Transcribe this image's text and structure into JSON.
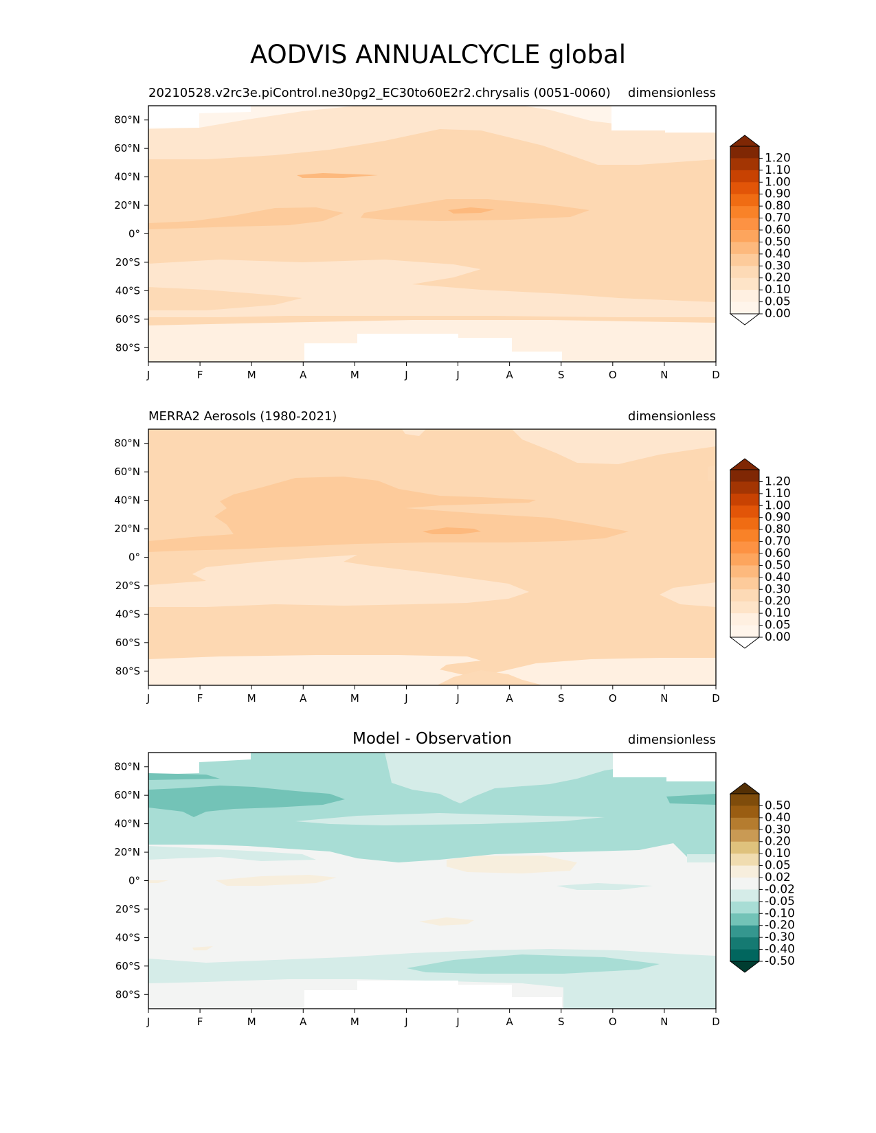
{
  "title": "AODVIS ANNUALCYCLE global",
  "chart_data": [
    {
      "type": "heatmap",
      "title": "",
      "left_title": "20210528.v2rc3e.piControl.ne30pg2_EC30to60E2r2.chrysalis (0051-0060)",
      "right_title": "dimensionless",
      "x_ticks": [
        "J",
        "F",
        "M",
        "A",
        "M",
        "J",
        "J",
        "A",
        "S",
        "O",
        "N",
        "D"
      ],
      "y_ticks": [
        "80°N",
        "60°N",
        "40°N",
        "20°N",
        "0°",
        "20°S",
        "40°S",
        "60°S",
        "80°S"
      ],
      "y_values": [
        80,
        60,
        40,
        20,
        0,
        -20,
        -40,
        -60,
        -80
      ],
      "ylim": [
        -90,
        90
      ],
      "colorbar": {
        "levels": [
          "1.20",
          "1.10",
          "1.00",
          "0.90",
          "0.80",
          "0.70",
          "0.60",
          "0.50",
          "0.40",
          "0.30",
          "0.20",
          "0.10",
          "0.05",
          "0.00"
        ],
        "colors": [
          "#7f2704",
          "#a33503",
          "#c84202",
          "#e25508",
          "#f06c13",
          "#f98228",
          "#fd9243",
          "#fda55d",
          "#fdb97d",
          "#fdcb9b",
          "#fddab6",
          "#fee4c8",
          "#fff0e1",
          "#fff5eb"
        ],
        "extend": "both",
        "top_color": "#7f2704",
        "bottom_color": "#ffffff"
      },
      "background_color": "#fdd8b2",
      "regions": [
        {
          "lat_range": [
            70,
            90
          ],
          "level": "0.05",
          "months": "J-A"
        },
        {
          "lat_range": [
            40,
            70
          ],
          "level": "0.10",
          "months": "J-A"
        },
        {
          "lat_range": [
            30,
            70
          ],
          "level": "0.20",
          "months": "M-A"
        },
        {
          "lat_range": [
            5,
            15
          ],
          "level": "0.30",
          "months": "J-A"
        },
        {
          "lat_range": [
            -15,
            -35
          ],
          "level": "0.10",
          "months": "J-D"
        },
        {
          "lat_range": [
            -60,
            -90
          ],
          "level": "0.05",
          "months": "J-D"
        },
        {
          "lat_range": [
            -75,
            -90
          ],
          "level": "0.00",
          "months": "A-S"
        }
      ]
    },
    {
      "type": "heatmap",
      "title": "",
      "left_title": "MERRA2 Aerosols (1980-2021)",
      "right_title": "dimensionless",
      "x_ticks": [
        "J",
        "F",
        "M",
        "A",
        "M",
        "J",
        "J",
        "A",
        "S",
        "O",
        "N",
        "D"
      ],
      "y_ticks": [
        "80°N",
        "60°N",
        "40°N",
        "20°N",
        "0°",
        "20°S",
        "40°S",
        "60°S",
        "80°S"
      ],
      "y_values": [
        80,
        60,
        40,
        20,
        0,
        -20,
        -40,
        -60,
        -80
      ],
      "ylim": [
        -90,
        90
      ],
      "colorbar": {
        "levels": [
          "1.20",
          "1.10",
          "1.00",
          "0.90",
          "0.80",
          "0.70",
          "0.60",
          "0.50",
          "0.40",
          "0.30",
          "0.20",
          "0.10",
          "0.05",
          "0.00"
        ],
        "colors": [
          "#7f2704",
          "#a33503",
          "#c84202",
          "#e25508",
          "#f06c13",
          "#f98228",
          "#fd9243",
          "#fda55d",
          "#fdb97d",
          "#fdcb9b",
          "#fddab6",
          "#fee4c8",
          "#fff0e1",
          "#fff5eb"
        ],
        "extend": "both",
        "top_color": "#7f2704",
        "bottom_color": "#ffffff"
      },
      "background_color": "#fdd8b2",
      "regions": [
        {
          "lat_range": [
            5,
            55
          ],
          "level": "0.30",
          "months": "M-S"
        },
        {
          "lat_range": [
            -15,
            -45
          ],
          "level": "0.10",
          "months": "J-S"
        },
        {
          "lat_range": [
            -70,
            -90
          ],
          "level": "0.05",
          "months": "J-D"
        }
      ]
    },
    {
      "type": "heatmap",
      "title": "Model - Observation",
      "left_title": "",
      "right_title": "dimensionless",
      "x_ticks": [
        "J",
        "F",
        "M",
        "A",
        "M",
        "J",
        "J",
        "A",
        "S",
        "O",
        "N",
        "D"
      ],
      "y_ticks": [
        "80°N",
        "60°N",
        "40°N",
        "20°N",
        "0°",
        "20°S",
        "40°S",
        "60°S",
        "80°S"
      ],
      "y_values": [
        80,
        60,
        40,
        20,
        0,
        -20,
        -40,
        -60,
        -80
      ],
      "ylim": [
        -90,
        90
      ],
      "colorbar": {
        "levels": [
          "0.50",
          "0.40",
          "0.30",
          "0.20",
          "0.10",
          "0.05",
          "0.02",
          "-0.02",
          "-0.05",
          "-0.10",
          "-0.20",
          "-0.30",
          "-0.40",
          "-0.50"
        ],
        "colors": [
          "#7f4c0b",
          "#9a5d12",
          "#b57c2f",
          "#c99a54",
          "#dfc27d",
          "#f0dcb0",
          "#f7eedd",
          "#f3f4f3",
          "#d5ece8",
          "#a8ddd5",
          "#73c3b7",
          "#35978f",
          "#157a72",
          "#01665e"
        ],
        "extend": "both",
        "top_color": "#543005",
        "bottom_color": "#003c30"
      },
      "background_color": "#f3f4f3",
      "regions": [
        {
          "lat_range": [
            25,
            90
          ],
          "level": "-0.10",
          "months": "J-D"
        },
        {
          "lat_range": [
            45,
            65
          ],
          "level": "-0.20",
          "months": "J-A"
        },
        {
          "lat_range": [
            70,
            90
          ],
          "level": "-0.05",
          "months": "J-O"
        },
        {
          "lat_range": [
            5,
            15
          ],
          "level": "0.05",
          "months": "J-S"
        },
        {
          "lat_range": [
            -50,
            -75
          ],
          "level": "-0.05",
          "months": "J-D"
        },
        {
          "lat_range": [
            -55,
            -60
          ],
          "level": "-0.10",
          "months": "J-O"
        }
      ]
    }
  ]
}
